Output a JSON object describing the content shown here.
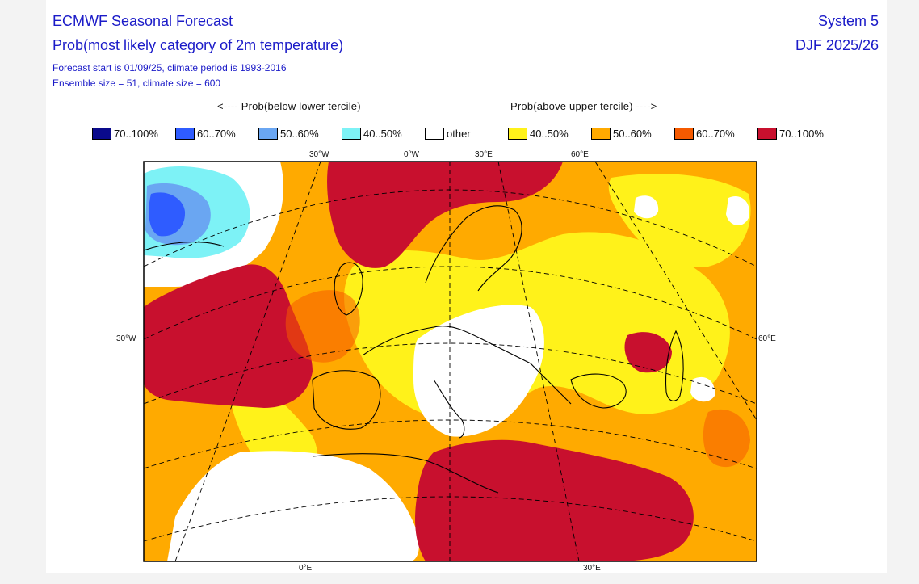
{
  "header": {
    "title_line1": "ECMWF Seasonal Forecast",
    "title_line2": "Prob(most likely category of 2m temperature)",
    "subtitle_line1": "Forecast start is 01/09/25, climate period is 1993-2016",
    "subtitle_line2": "Ensemble size = 51, climate size = 600",
    "system": "System 5",
    "season": "DJF 2025/26"
  },
  "legend": {
    "left_caption": "<---- Prob(below lower tercile)",
    "right_caption": "Prob(above upper tercile) ---->",
    "items": [
      {
        "label": "70..100%",
        "color": "#0a0a8c"
      },
      {
        "label": "60..70%",
        "color": "#2f5cff"
      },
      {
        "label": "50..60%",
        "color": "#6aa6f2"
      },
      {
        "label": "40..50%",
        "color": "#7df2f6"
      },
      {
        "label": "other",
        "color": "#ffffff"
      },
      {
        "label": "40..50%",
        "color": "#fff21a"
      },
      {
        "label": "50..60%",
        "color": "#ffaa00"
      },
      {
        "label": "60..70%",
        "color": "#f55a00"
      },
      {
        "label": "70..100%",
        "color": "#c8102e"
      }
    ]
  },
  "map": {
    "projection": "polar stereographic, Europe",
    "ticks": {
      "top": [
        "30°W",
        "0°W",
        "30°E",
        "60°E"
      ],
      "left": "30°W",
      "right": "60°E",
      "bottom": [
        "0°E",
        "30°E"
      ]
    },
    "regions": [
      {
        "area": "Labrador Sea / W Greenland",
        "category": "below lower tercile 60..70%",
        "color": "#2f5cff"
      },
      {
        "area": "Central North Atlantic",
        "category": "above upper tercile 70..100%",
        "color": "#c8102e"
      },
      {
        "area": "Central Europe / Balkans",
        "category": "other",
        "color": "#ffffff"
      },
      {
        "area": "North Africa (Sahara)",
        "category": "other",
        "color": "#ffffff"
      },
      {
        "area": "Mediterranean / Middle East",
        "category": "above upper tercile 70..100%",
        "color": "#c8102e"
      },
      {
        "area": "Eastern Europe / Russia",
        "category": "above upper tercile 40..60%",
        "color": "#ffaa00"
      }
    ]
  }
}
